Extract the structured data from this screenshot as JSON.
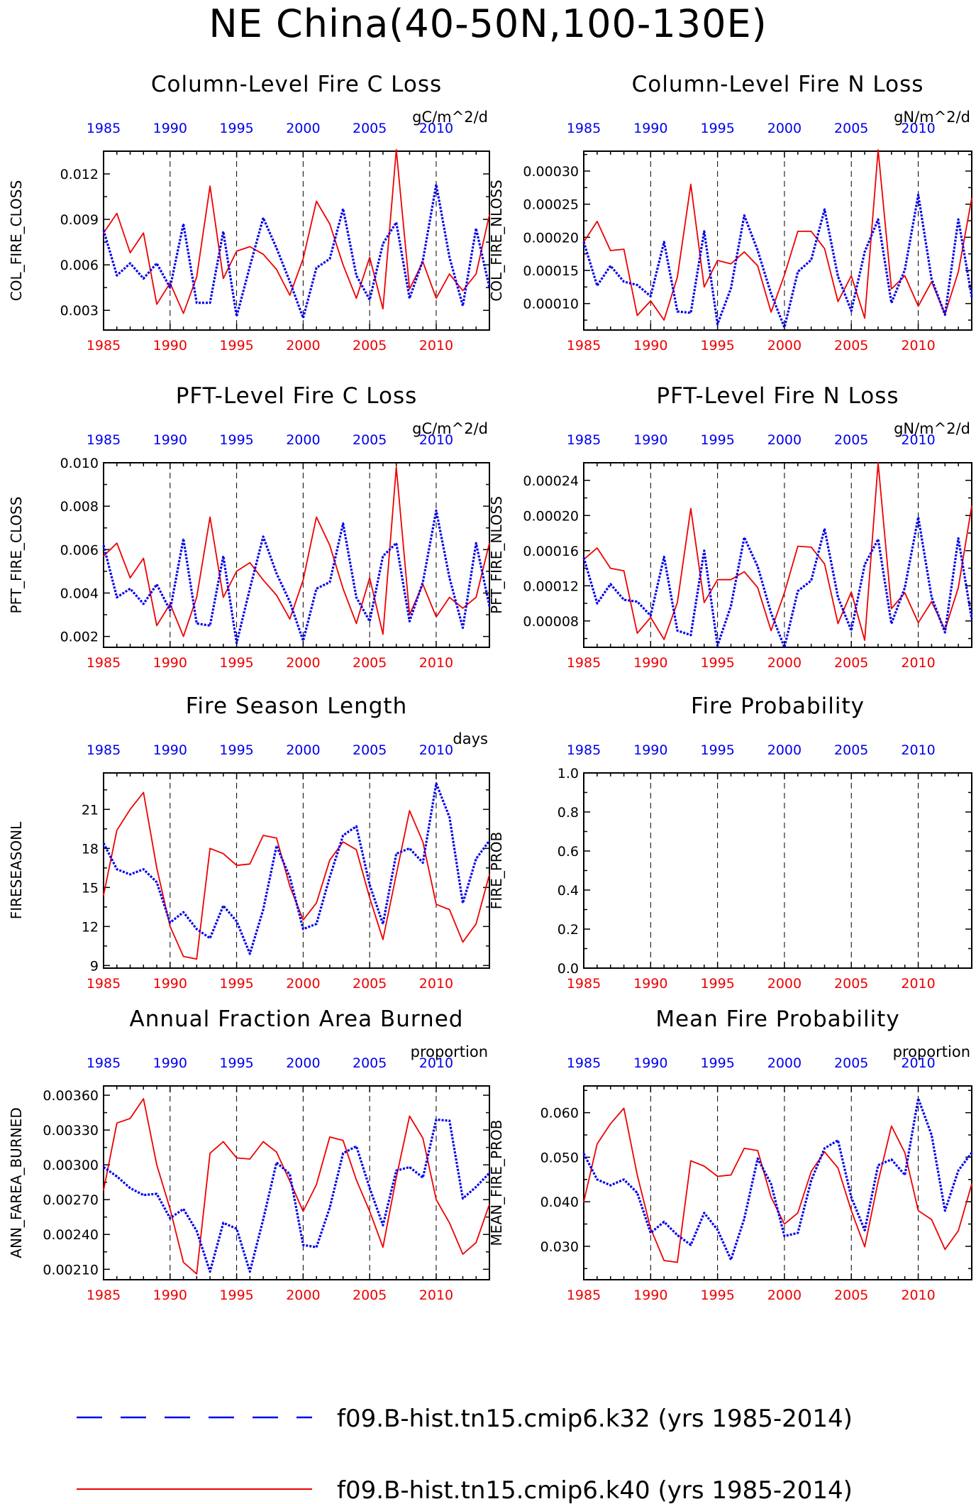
{
  "figure_title": "NE China(40-50N,100-130E)",
  "colors": {
    "k32": "#0000ee",
    "k40": "#ee0000",
    "axis": "#000000",
    "grid": "#000000"
  },
  "legend": [
    {
      "label": "f09.B-hist.tn15.cmip6.k32 (yrs 1985-2014)",
      "color": "#0000ee",
      "style": "dashed"
    },
    {
      "label": "f09.B-hist.tn15.cmip6.k40 (yrs 1985-2014)",
      "color": "#ee0000",
      "style": "solid"
    }
  ],
  "chart_data": [
    {
      "type": "line",
      "title": "Column-Level Fire C Loss",
      "ylabel": "COL_FIRE_CLOSS",
      "units": "gC/m^2/d",
      "x": [
        1985,
        1986,
        1987,
        1988,
        1989,
        1990,
        1991,
        1992,
        1993,
        1994,
        1995,
        1996,
        1997,
        1998,
        1999,
        2000,
        2001,
        2002,
        2003,
        2004,
        2005,
        2006,
        2007,
        2008,
        2009,
        2010,
        2011,
        2012,
        2013,
        2014
      ],
      "xlim": [
        1985,
        2014
      ],
      "xticks": [
        1985,
        1990,
        1995,
        2000,
        2005,
        2010
      ],
      "ylim": [
        0.0017,
        0.0135
      ],
      "yticks": [
        0.003,
        0.006,
        0.009,
        0.012
      ],
      "ytick_labels": [
        "0.003",
        "0.006",
        "0.009",
        "0.012"
      ],
      "series": [
        {
          "id": "k40",
          "values": [
            0.0081,
            0.0094,
            0.0068,
            0.0081,
            0.0034,
            0.0048,
            0.0028,
            0.0052,
            0.0112,
            0.0051,
            0.0069,
            0.0072,
            0.0067,
            0.0057,
            0.004,
            0.0064,
            0.0102,
            0.0087,
            0.006,
            0.0038,
            0.0065,
            0.0031,
            0.0136,
            0.0044,
            0.0062,
            0.0038,
            0.0054,
            0.0043,
            0.0054,
            0.0093
          ]
        },
        {
          "id": "k32",
          "values": [
            0.0083,
            0.0053,
            0.0061,
            0.0051,
            0.0061,
            0.0045,
            0.0087,
            0.0035,
            0.0035,
            0.0082,
            0.0026,
            0.0059,
            0.0091,
            0.0071,
            0.0049,
            0.0025,
            0.0058,
            0.0064,
            0.0097,
            0.0053,
            0.0037,
            0.0074,
            0.0088,
            0.0038,
            0.0063,
            0.0113,
            0.0065,
            0.0033,
            0.0084,
            0.0045
          ]
        }
      ]
    },
    {
      "type": "line",
      "title": "Column-Level Fire N Loss",
      "ylabel": "COL_FIRE_NLOSS",
      "units": "gN/m^2/d",
      "x": [
        1985,
        1986,
        1987,
        1988,
        1989,
        1990,
        1991,
        1992,
        1993,
        1994,
        1995,
        1996,
        1997,
        1998,
        1999,
        2000,
        2001,
        2002,
        2003,
        2004,
        2005,
        2006,
        2007,
        2008,
        2009,
        2010,
        2011,
        2012,
        2013,
        2014
      ],
      "xlim": [
        1985,
        2014
      ],
      "xticks": [
        1985,
        1990,
        1995,
        2000,
        2005,
        2010
      ],
      "ylim": [
        6e-05,
        0.00033
      ],
      "yticks": [
        0.0001,
        0.00015,
        0.0002,
        0.00025,
        0.0003
      ],
      "ytick_labels": [
        "0.00010",
        "0.00015",
        "0.00020",
        "0.00025",
        "0.00030"
      ],
      "series": [
        {
          "id": "k40",
          "values": [
            0.000193,
            0.000224,
            0.00018,
            0.000182,
            8.2e-05,
            0.000104,
            7.5e-05,
            0.00014,
            0.00028,
            0.000125,
            0.000165,
            0.00016,
            0.000178,
            0.000157,
            8.7e-05,
            0.000143,
            0.000209,
            0.000209,
            0.000183,
            0.000103,
            0.000142,
            7.8e-05,
            0.000332,
            0.000122,
            0.000142,
            9.6e-05,
            0.000133,
            8.4e-05,
            0.000148,
            0.000259
          ]
        },
        {
          "id": "k32",
          "values": [
            0.000193,
            0.000127,
            0.000157,
            0.000133,
            0.000128,
            0.000111,
            0.000193,
            8.8e-05,
            8.6e-05,
            0.000209,
            6.9e-05,
            0.000123,
            0.000233,
            0.00018,
            0.000115,
            6.4e-05,
            0.000148,
            0.000166,
            0.000242,
            0.000141,
            8.9e-05,
            0.000178,
            0.000227,
            0.000101,
            0.000151,
            0.000264,
            0.000137,
            8.3e-05,
            0.000227,
            0.00011
          ]
        }
      ]
    },
    {
      "type": "line",
      "title": "PFT-Level Fire C Loss",
      "ylabel": "PFT_FIRE_CLOSS",
      "units": "gC/m^2/d",
      "x": [
        1985,
        1986,
        1987,
        1988,
        1989,
        1990,
        1991,
        1992,
        1993,
        1994,
        1995,
        1996,
        1997,
        1998,
        1999,
        2000,
        2001,
        2002,
        2003,
        2004,
        2005,
        2006,
        2007,
        2008,
        2009,
        2010,
        2011,
        2012,
        2013,
        2014
      ],
      "xlim": [
        1985,
        2014
      ],
      "xticks": [
        1985,
        1990,
        1995,
        2000,
        2005,
        2010
      ],
      "ylim": [
        0.0015,
        0.01
      ],
      "yticks": [
        0.002,
        0.004,
        0.006,
        0.008,
        0.01
      ],
      "ytick_labels": [
        "0.002",
        "0.004",
        "0.006",
        "0.008",
        "0.010"
      ],
      "series": [
        {
          "id": "k40",
          "values": [
            0.0057,
            0.0063,
            0.0047,
            0.0056,
            0.0025,
            0.0035,
            0.002,
            0.0038,
            0.0075,
            0.0038,
            0.005,
            0.0054,
            0.0046,
            0.0039,
            0.0028,
            0.0046,
            0.0075,
            0.0062,
            0.0042,
            0.0026,
            0.0047,
            0.0021,
            0.0098,
            0.003,
            0.0044,
            0.0029,
            0.0038,
            0.0033,
            0.0038,
            0.0063
          ]
        },
        {
          "id": "k32",
          "values": [
            0.0062,
            0.0038,
            0.0042,
            0.0035,
            0.0044,
            0.0032,
            0.0065,
            0.0026,
            0.0025,
            0.0057,
            0.0017,
            0.0042,
            0.0066,
            0.0049,
            0.0036,
            0.0018,
            0.0042,
            0.0045,
            0.0072,
            0.0038,
            0.0027,
            0.0057,
            0.0063,
            0.0027,
            0.0045,
            0.0078,
            0.0047,
            0.0024,
            0.0063,
            0.0034
          ]
        }
      ]
    },
    {
      "type": "line",
      "title": "PFT-Level Fire N Loss",
      "ylabel": "PFT_FIRE_NLOSS",
      "units": "gN/m^2/d",
      "x": [
        1985,
        1986,
        1987,
        1988,
        1989,
        1990,
        1991,
        1992,
        1993,
        1994,
        1995,
        1996,
        1997,
        1998,
        1999,
        2000,
        2001,
        2002,
        2003,
        2004,
        2005,
        2006,
        2007,
        2008,
        2009,
        2010,
        2011,
        2012,
        2013,
        2014
      ],
      "xlim": [
        1985,
        2014
      ],
      "xticks": [
        1985,
        1990,
        1995,
        2000,
        2005,
        2010
      ],
      "ylim": [
        5e-05,
        0.00026
      ],
      "yticks": [
        8e-05,
        0.00012,
        0.00016,
        0.0002,
        0.00024
      ],
      "ytick_labels": [
        "0.00008",
        "0.00012",
        "0.00016",
        "0.00020",
        "0.00024"
      ],
      "series": [
        {
          "id": "k40",
          "values": [
            0.00015,
            0.000163,
            0.00014,
            0.000137,
            6.6e-05,
            8.4e-05,
            5.9e-05,
            0.000101,
            0.000208,
            0.000101,
            0.000127,
            0.000127,
            0.000136,
            0.000118,
            6.9e-05,
            0.000112,
            0.000165,
            0.000164,
            0.000145,
            7.7e-05,
            0.000113,
            5.8e-05,
            0.00026,
            9.4e-05,
            0.000112,
            7.8e-05,
            0.000102,
            7e-05,
            0.000118,
            0.000211
          ]
        },
        {
          "id": "k32",
          "values": [
            0.000152,
            0.0001,
            0.000122,
            0.000104,
            0.000102,
            8.6e-05,
            0.000153,
            6.9e-05,
            6.4e-05,
            0.00016,
            5.2e-05,
            9.7e-05,
            0.000175,
            0.000142,
            8.9e-05,
            5e-05,
            0.000114,
            0.000126,
            0.000185,
            0.000107,
            6.9e-05,
            0.000144,
            0.000173,
            7.7e-05,
            0.000118,
            0.000198,
            0.000107,
            6.7e-05,
            0.000174,
            8.2e-05
          ]
        }
      ]
    },
    {
      "type": "line",
      "title": "Fire Season Length",
      "ylabel": "FIRESEASONL",
      "units": "days",
      "x": [
        1985,
        1986,
        1987,
        1988,
        1989,
        1990,
        1991,
        1992,
        1993,
        1994,
        1995,
        1996,
        1997,
        1998,
        1999,
        2000,
        2001,
        2002,
        2003,
        2004,
        2005,
        2006,
        2007,
        2008,
        2009,
        2010,
        2011,
        2012,
        2013,
        2014
      ],
      "xlim": [
        1985,
        2014
      ],
      "xticks": [
        1985,
        1990,
        1995,
        2000,
        2005,
        2010
      ],
      "ylim": [
        8.8,
        23.8
      ],
      "yticks": [
        9,
        12,
        15,
        18,
        21
      ],
      "ytick_labels": [
        "9",
        "12",
        "15",
        "18",
        "21"
      ],
      "series": [
        {
          "id": "k40",
          "values": [
            14.4,
            19.4,
            21.0,
            22.3,
            16.5,
            12.0,
            9.7,
            9.5,
            18.0,
            17.6,
            16.7,
            16.8,
            19.0,
            18.8,
            15.1,
            12.5,
            13.8,
            17.1,
            18.5,
            17.9,
            14.2,
            11.0,
            16.0,
            20.9,
            18.5,
            13.7,
            13.3,
            10.8,
            12.2,
            16.0
          ]
        },
        {
          "id": "k32",
          "values": [
            18.4,
            16.4,
            16.0,
            16.4,
            15.4,
            12.3,
            13.1,
            11.8,
            11.1,
            13.6,
            12.4,
            9.9,
            13.3,
            18.2,
            15.8,
            11.8,
            12.2,
            15.8,
            19.0,
            19.7,
            15.2,
            12.2,
            17.6,
            18.0,
            16.9,
            23.0,
            20.4,
            13.8,
            17.2,
            18.6
          ]
        }
      ]
    },
    {
      "type": "line",
      "title": "Fire Probability",
      "ylabel": "FIRE_PROB",
      "units": "",
      "x": [],
      "xlim": [
        1985,
        2014
      ],
      "xticks": [
        1985,
        1990,
        1995,
        2000,
        2005,
        2010
      ],
      "ylim": [
        0.0,
        1.0
      ],
      "yticks": [
        0.0,
        0.2,
        0.4,
        0.6,
        0.8,
        1.0
      ],
      "ytick_labels": [
        "0.0",
        "0.2",
        "0.4",
        "0.6",
        "0.8",
        "1.0"
      ],
      "series": []
    },
    {
      "type": "line",
      "title": "Annual Fraction Area Burned",
      "ylabel": "ANN_FAREA_BURNED",
      "units": "proportion",
      "x": [
        1985,
        1986,
        1987,
        1988,
        1989,
        1990,
        1991,
        1992,
        1993,
        1994,
        1995,
        1996,
        1997,
        1998,
        1999,
        2000,
        2001,
        2002,
        2003,
        2004,
        2005,
        2006,
        2007,
        2008,
        2009,
        2010,
        2011,
        2012,
        2013,
        2014
      ],
      "xlim": [
        1985,
        2014
      ],
      "xticks": [
        1985,
        1990,
        1995,
        2000,
        2005,
        2010
      ],
      "ylim": [
        0.00201,
        0.00368
      ],
      "yticks": [
        0.0021,
        0.0024,
        0.0027,
        0.003,
        0.0033,
        0.0036
      ],
      "ytick_labels": [
        "0.00210",
        "0.00240",
        "0.00270",
        "0.00300",
        "0.00330",
        "0.00360"
      ],
      "series": [
        {
          "id": "k40",
          "values": [
            0.00278,
            0.00336,
            0.0034,
            0.00357,
            0.003,
            0.00262,
            0.00216,
            0.00206,
            0.0031,
            0.0032,
            0.00306,
            0.00305,
            0.0032,
            0.00311,
            0.00286,
            0.0026,
            0.00283,
            0.00324,
            0.00321,
            0.00287,
            0.0026,
            0.00229,
            0.00289,
            0.00342,
            0.00323,
            0.0027,
            0.0025,
            0.00223,
            0.00233,
            0.00266
          ]
        },
        {
          "id": "k32",
          "values": [
            0.00298,
            0.0029,
            0.0028,
            0.00274,
            0.00275,
            0.00254,
            0.00262,
            0.00243,
            0.00208,
            0.0025,
            0.00245,
            0.00208,
            0.00253,
            0.00302,
            0.00292,
            0.00231,
            0.00229,
            0.00263,
            0.0031,
            0.00316,
            0.0028,
            0.00248,
            0.00295,
            0.00298,
            0.00289,
            0.00339,
            0.00338,
            0.00271,
            0.00281,
            0.00293
          ]
        }
      ]
    },
    {
      "type": "line",
      "title": "Mean Fire Probability",
      "ylabel": "MEAN_FIRE_PROB",
      "units": "proportion",
      "x": [
        1985,
        1986,
        1987,
        1988,
        1989,
        1990,
        1991,
        1992,
        1993,
        1994,
        1995,
        1996,
        1997,
        1998,
        1999,
        2000,
        2001,
        2002,
        2003,
        2004,
        2005,
        2006,
        2007,
        2008,
        2009,
        2010,
        2011,
        2012,
        2013,
        2014
      ],
      "xlim": [
        1985,
        2014
      ],
      "xticks": [
        1985,
        1990,
        1995,
        2000,
        2005,
        2010
      ],
      "ylim": [
        0.0225,
        0.066
      ],
      "yticks": [
        0.03,
        0.04,
        0.05,
        0.06
      ],
      "ytick_labels": [
        "0.030",
        "0.040",
        "0.050",
        "0.060"
      ],
      "series": [
        {
          "id": "k40",
          "values": [
            0.04,
            0.053,
            0.0575,
            0.061,
            0.046,
            0.034,
            0.0268,
            0.0264,
            0.0492,
            0.048,
            0.0457,
            0.046,
            0.052,
            0.0515,
            0.041,
            0.035,
            0.0375,
            0.0468,
            0.0512,
            0.0476,
            0.038,
            0.0299,
            0.0445,
            0.057,
            0.051,
            0.038,
            0.036,
            0.0293,
            0.0335,
            0.044
          ]
        },
        {
          "id": "k32",
          "values": [
            0.0508,
            0.045,
            0.0437,
            0.045,
            0.042,
            0.033,
            0.0355,
            0.0325,
            0.0303,
            0.0375,
            0.0337,
            0.027,
            0.0362,
            0.0497,
            0.044,
            0.0323,
            0.033,
            0.0448,
            0.052,
            0.0538,
            0.041,
            0.0336,
            0.0482,
            0.0495,
            0.046,
            0.0632,
            0.055,
            0.038,
            0.047,
            0.051
          ]
        }
      ]
    }
  ]
}
